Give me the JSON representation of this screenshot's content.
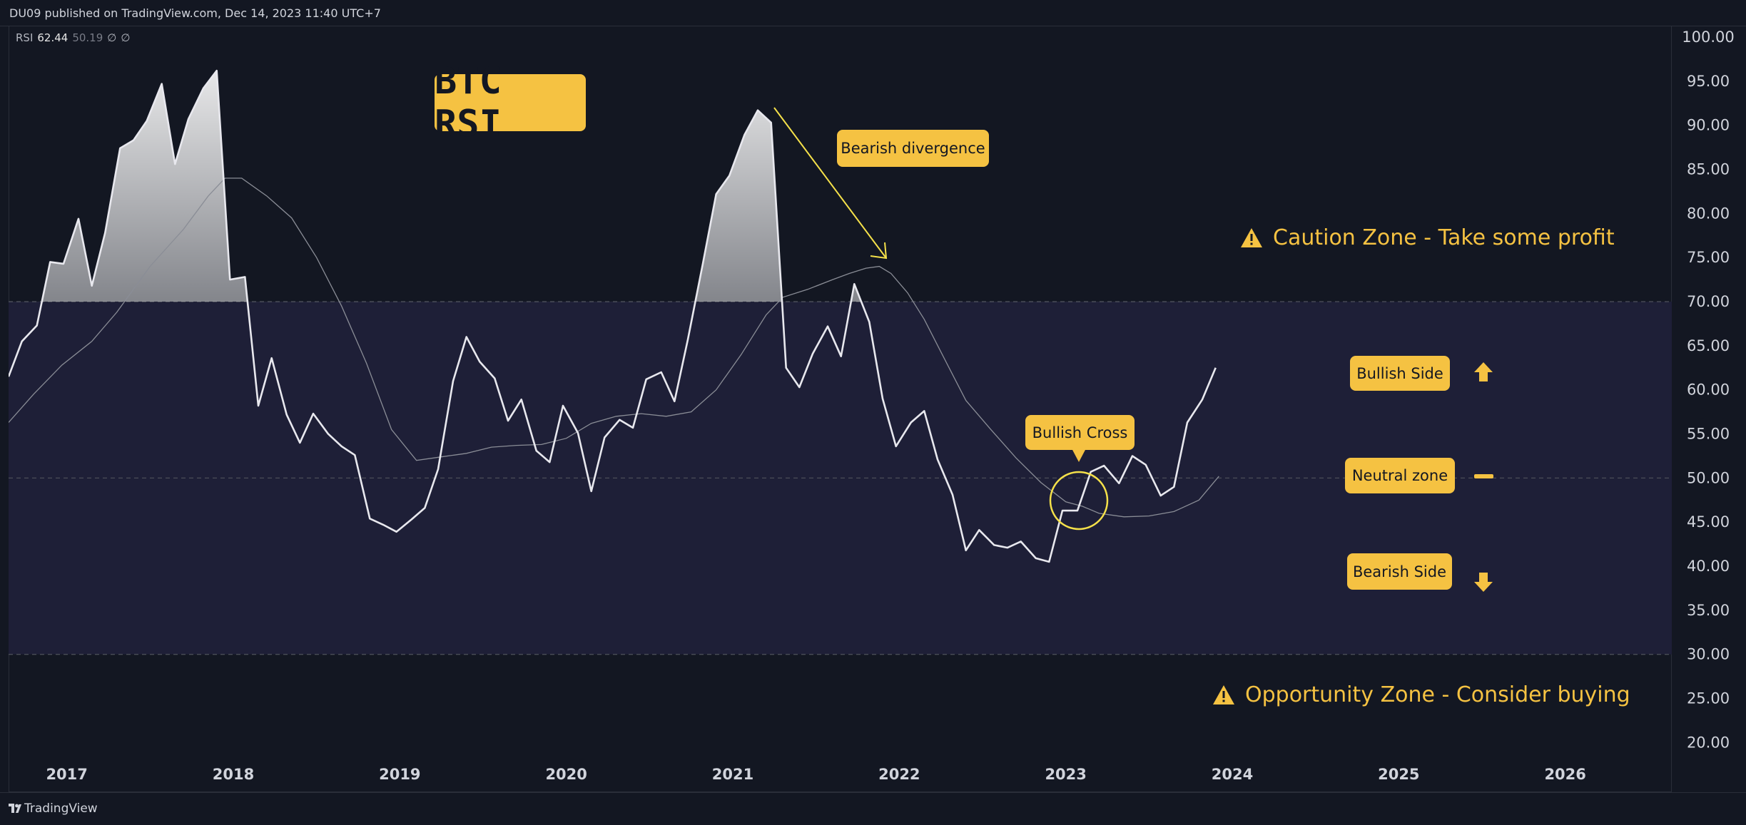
{
  "header": {
    "text": "DU09 published on TradingView.com, Dec 14, 2023 11:40 UTC+7"
  },
  "legend": {
    "name": "RSI",
    "rsi_value": "62.44",
    "ma_value": "50.19",
    "extra1": "∅",
    "extra2": "∅"
  },
  "footer": {
    "brand": "TradingView"
  },
  "annotations": {
    "title": "BTC RSI",
    "bearish_divergence": "Bearish divergence",
    "bullish_cross": "Bullish Cross",
    "caution_zone": "Caution Zone - Take some profit",
    "opportunity_zone": "Opportunity Zone - Consider buying",
    "bullish_side": "Bullish Side",
    "neutral_zone": "Neutral zone",
    "bearish_side": "Bearish Side"
  },
  "colors": {
    "background": "#131722",
    "band_fill": "#1e1f37",
    "rsi_line": "#e8e8ee",
    "ma_line": "#8a8d96",
    "accent": "#f5c242",
    "axis_text": "#d1d4dc"
  },
  "chart_data": {
    "type": "line",
    "xlim": [
      2016.65,
      2026.64
    ],
    "ylim": [
      17.2,
      101.3
    ],
    "x_ticks": [
      "2017",
      "2018",
      "2019",
      "2020",
      "2021",
      "2022",
      "2023",
      "2024",
      "2025",
      "2026"
    ],
    "y_ticks": [
      "100.00",
      "95.00",
      "90.00",
      "85.00",
      "80.00",
      "75.00",
      "70.00",
      "65.00",
      "60.00",
      "55.00",
      "50.00",
      "45.00",
      "40.00",
      "35.00",
      "30.00",
      "25.00",
      "20.00"
    ],
    "levels": {
      "overbought": 70,
      "middle": 50,
      "oversold": 30
    },
    "series": [
      {
        "name": "RSI",
        "x": [
          2016.65,
          2016.73,
          2016.82,
          2016.9,
          2016.98,
          2017.07,
          2017.15,
          2017.23,
          2017.32,
          2017.4,
          2017.48,
          2017.57,
          2017.65,
          2017.73,
          2017.82,
          2017.9,
          2017.98,
          2018.07,
          2018.15,
          2018.23,
          2018.32,
          2018.4,
          2018.48,
          2018.57,
          2018.65,
          2018.73,
          2018.82,
          2018.9,
          2018.98,
          2019.07,
          2019.15,
          2019.23,
          2019.32,
          2019.4,
          2019.48,
          2019.57,
          2019.65,
          2019.73,
          2019.82,
          2019.9,
          2019.98,
          2020.07,
          2020.15,
          2020.23,
          2020.32,
          2020.4,
          2020.48,
          2020.57,
          2020.65,
          2020.73,
          2020.82,
          2020.9,
          2020.98,
          2021.07,
          2021.15,
          2021.23,
          2021.32,
          2021.4,
          2021.48,
          2021.57,
          2021.65,
          2021.73,
          2021.82,
          2021.9,
          2021.98,
          2022.07,
          2022.15,
          2022.23,
          2022.32,
          2022.4,
          2022.48,
          2022.57,
          2022.65,
          2022.73,
          2022.82,
          2022.9,
          2022.98,
          2023.07,
          2023.15,
          2023.23,
          2023.32,
          2023.4,
          2023.48,
          2023.57,
          2023.65,
          2023.73,
          2023.82,
          2023.9
        ],
        "values": [
          61.5,
          65.5,
          67.3,
          74.5,
          74.3,
          79.4,
          71.8,
          77.8,
          87.4,
          88.3,
          90.5,
          94.7,
          85.6,
          90.7,
          94.2,
          96.2,
          72.5,
          72.8,
          58.2,
          63.6,
          57.2,
          54,
          57.3,
          55,
          53.6,
          52.6,
          45.4,
          44.7,
          43.9,
          45.3,
          46.6,
          51,
          61,
          66,
          63.2,
          61.3,
          56.5,
          58.9,
          53.1,
          51.8,
          58.2,
          55.1,
          48.5,
          54.6,
          56.6,
          55.7,
          61.2,
          62,
          58.7,
          65.7,
          74.3,
          82.2,
          84.3,
          88.9,
          91.7,
          90.3,
          62.5,
          60.3,
          64.1,
          67.2,
          63.8,
          72,
          67.7,
          59,
          53.6,
          56.3,
          57.6,
          52.1,
          48.1,
          41.8,
          44.1,
          42.4,
          42.1,
          42.8,
          40.9,
          40.5,
          46.3,
          46.3,
          50.7,
          51.4,
          49.4,
          52.5,
          51.5,
          48,
          49,
          56.3,
          58.9,
          62.5
        ]
      },
      {
        "name": "MA",
        "x": [
          2016.65,
          2016.8,
          2016.97,
          2017.15,
          2017.3,
          2017.5,
          2017.7,
          2017.85,
          2017.95,
          2018.05,
          2018.2,
          2018.35,
          2018.5,
          2018.65,
          2018.8,
          2018.95,
          2019.1,
          2019.25,
          2019.4,
          2019.55,
          2019.7,
          2019.85,
          2020.0,
          2020.15,
          2020.3,
          2020.45,
          2020.6,
          2020.75,
          2020.9,
          2021.05,
          2021.2,
          2021.3,
          2021.45,
          2021.6,
          2021.7,
          2021.8,
          2021.88,
          2021.95,
          2022.05,
          2022.15,
          2022.25,
          2022.4,
          2022.55,
          2022.7,
          2022.85,
          2023.0,
          2023.1,
          2023.2,
          2023.35,
          2023.5,
          2023.65,
          2023.8,
          2023.92
        ],
        "values": [
          56.3,
          59.5,
          62.8,
          65.5,
          68.8,
          74,
          78.2,
          82,
          84,
          84,
          82,
          79.5,
          75,
          69.5,
          63,
          55.5,
          52,
          52.4,
          52.8,
          53.5,
          53.7,
          53.8,
          54.5,
          56.2,
          57,
          57.3,
          57,
          57.5,
          60,
          64,
          68.5,
          70.5,
          71.4,
          72.5,
          73.2,
          73.8,
          74,
          73.2,
          71,
          68,
          64.3,
          58.8,
          55.5,
          52.3,
          49.5,
          47.3,
          46.8,
          46,
          45.6,
          45.7,
          46.2,
          47.5,
          50.2
        ]
      }
    ]
  }
}
